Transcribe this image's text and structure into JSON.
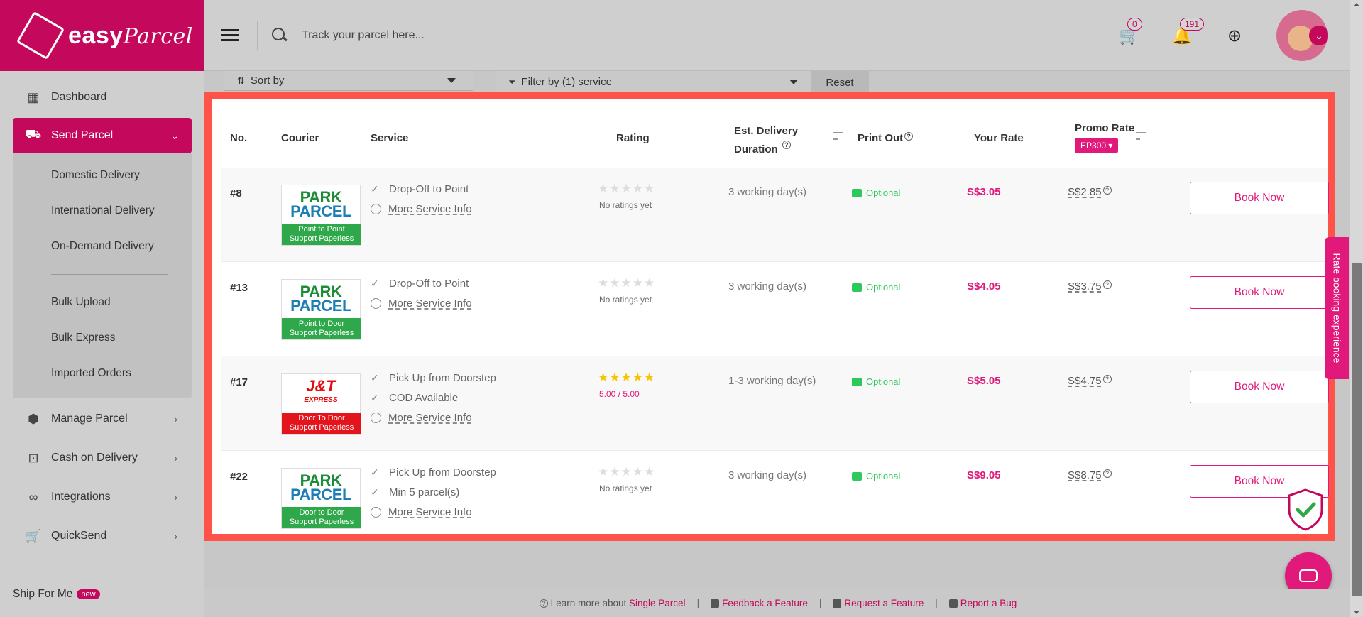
{
  "brand": {
    "logo_main": "easy",
    "logo_script": "Parcel",
    "color": "#c4095d"
  },
  "topbar": {
    "search_placeholder": "Track your parcel here...",
    "cart_count": "0",
    "notification_count": "191"
  },
  "sidebar": {
    "dashboard": "Dashboard",
    "send_parcel": "Send Parcel",
    "sub": {
      "domestic": "Domestic Delivery",
      "international": "International Delivery",
      "on_demand": "On-Demand Delivery",
      "bulk_upload": "Bulk Upload",
      "bulk_express": "Bulk Express",
      "imported": "Imported Orders"
    },
    "manage_parcel": "Manage Parcel",
    "cod": "Cash on Delivery",
    "integrations": "Integrations",
    "quicksend": "QuickSend",
    "ship_for_me": "Ship For Me",
    "new_badge": "new"
  },
  "filters": {
    "sort_label": "Sort by",
    "filter_label": "Filter by (1) service",
    "reset_label": "Reset"
  },
  "table": {
    "headers": {
      "no": "No.",
      "courier": "Courier",
      "service": "Service",
      "rating": "Rating",
      "delivery_line1": "Est. Delivery",
      "delivery_line2": "Duration",
      "print_out": "Print Out",
      "your_rate": "Your Rate",
      "promo_rate": "Promo Rate",
      "promo_code": "EP300"
    },
    "book_label": "Book Now",
    "rows": [
      {
        "no": "#8",
        "courier_line1": "PARK",
        "courier_line2": "PARCEL",
        "tag_line1": "Point to Point",
        "tag_line2": "Support Paperless",
        "svc1": "Drop-Off to Point",
        "svc_info": "More Service Info",
        "stars": "★★★★★",
        "rating_text": "No ratings yet",
        "duration": "3 working day(s)",
        "print": "Optional",
        "your_rate": "S$3.05",
        "promo_rate": "S$2.85"
      },
      {
        "no": "#13",
        "courier_line1": "PARK",
        "courier_line2": "PARCEL",
        "tag_line1": "Point to Door",
        "tag_line2": "Support Paperless",
        "svc1": "Drop-Off to Point",
        "svc_info": "More Service Info",
        "stars": "★★★★★",
        "rating_text": "No ratings yet",
        "duration": "3 working day(s)",
        "print": "Optional",
        "your_rate": "S$4.05",
        "promo_rate": "S$3.75"
      },
      {
        "no": "#17",
        "courier_line1": "J&T",
        "courier_line2": "EXPRESS",
        "tag_line1": "Door To Door",
        "tag_line2": "Support Paperless",
        "svc1": "Pick Up from Doorstep",
        "svc2": "COD Available",
        "svc_info": "More Service Info",
        "stars": "★★★★★",
        "rating_text": "5.00 / 5.00",
        "duration": "1-3 working day(s)",
        "print": "Optional",
        "your_rate": "S$5.05",
        "promo_rate": "S$4.75"
      },
      {
        "no": "#22",
        "courier_line1": "PARK",
        "courier_line2": "PARCEL",
        "tag_line1": "Door to Door",
        "tag_line2": "Support Paperless",
        "svc1": "Pick Up from Doorstep",
        "svc2": "Min 5 parcel(s)",
        "svc_info": "More Service Info",
        "stars": "★★★★★",
        "rating_text": "No ratings yet",
        "duration": "3 working day(s)",
        "print": "Optional",
        "your_rate": "S$9.05",
        "promo_rate": "S$8.75"
      }
    ]
  },
  "side_tab": "Rate booking experience",
  "footer": {
    "learn_prefix": "Learn more about",
    "learn_link": "Single Parcel",
    "feedback": "Feedback a Feature",
    "request": "Request a Feature",
    "bug": "Report a Bug"
  }
}
